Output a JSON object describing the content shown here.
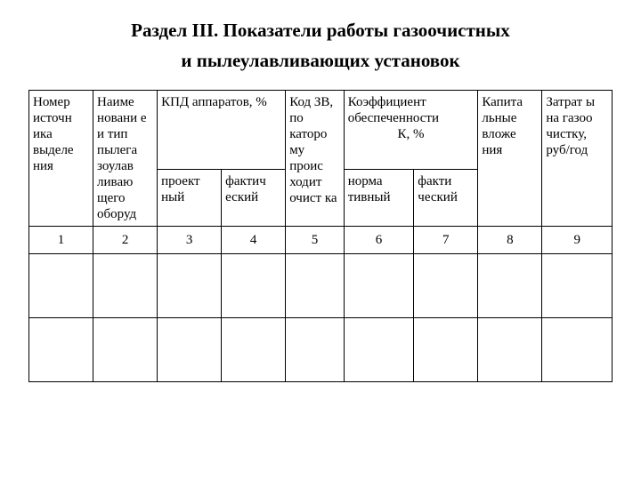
{
  "title_line1": "Раздел III. Показатели работы газоочистных",
  "title_line2": "и пылеулавливающих установок",
  "headers": {
    "col1": "Номер источн ика выделе ния",
    "col2": "Наиме новани е и тип пылега зоулав ливаю щего оборуд",
    "col3_top": "КПД аппаратов, %",
    "col3a": "проект ный",
    "col3b": "фактич еский",
    "col5": "Код ЗВ, по каторо му проис ходит очист ка",
    "col6_top_l1": "Коэффициент обеспеченности",
    "col6_top_l2": "К, %",
    "col6a": "норма тивный",
    "col6b": "факти ческий",
    "col8": "Капита льные вложе ния",
    "col9": "Затрат ы на газоо чистку, руб/год"
  },
  "nums": [
    "1",
    "2",
    "3",
    "4",
    "5",
    "6",
    "7",
    "8",
    "9"
  ],
  "colwidths": [
    "11%",
    "11%",
    "11%",
    "11%",
    "10%",
    "12%",
    "11%",
    "11%",
    "12%"
  ]
}
